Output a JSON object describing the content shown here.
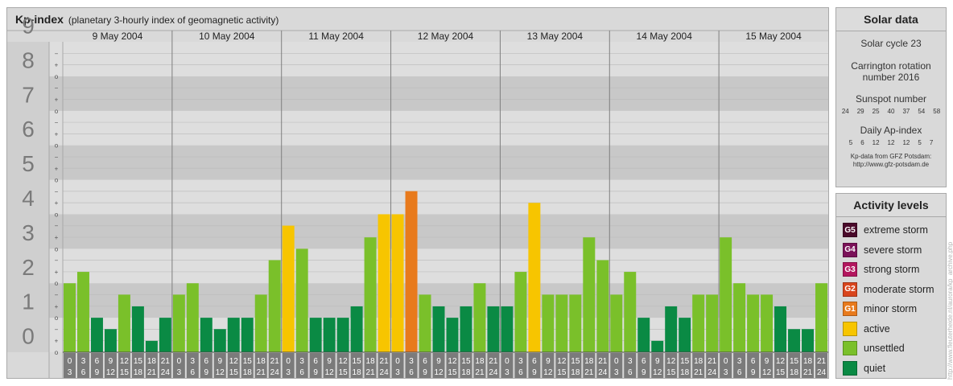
{
  "header": {
    "title": "Kp-index",
    "subtitle": "(planetary 3-hourly index of geomagnetic activity)"
  },
  "chart_data": {
    "type": "bar",
    "title": "Kp-index",
    "subtitle": "(planetary 3-hourly index of geomagnetic activity)",
    "days": [
      "9 May 2004",
      "10 May 2004",
      "11 May 2004",
      "12 May 2004",
      "13 May 2004",
      "14 May 2004",
      "15 May 2004"
    ],
    "intervals": [
      {
        "start": "0",
        "end": "3"
      },
      {
        "start": "3",
        "end": "6"
      },
      {
        "start": "6",
        "end": "9"
      },
      {
        "start": "9",
        "end": "12"
      },
      {
        "start": "12",
        "end": "15"
      },
      {
        "start": "15",
        "end": "18"
      },
      {
        "start": "18",
        "end": "21"
      },
      {
        "start": "21",
        "end": "24"
      }
    ],
    "values": [
      [
        2.0,
        2.33,
        1.0,
        0.67,
        1.67,
        1.33,
        0.33,
        1.0
      ],
      [
        1.67,
        2.0,
        1.0,
        0.67,
        1.0,
        1.0,
        1.67,
        2.67
      ],
      [
        3.67,
        3.0,
        1.0,
        1.0,
        1.0,
        1.33,
        3.33,
        4.0
      ],
      [
        4.0,
        4.67,
        1.67,
        1.33,
        1.0,
        1.33,
        2.0,
        1.33
      ],
      [
        1.33,
        2.33,
        4.33,
        1.67,
        1.67,
        1.67,
        3.33,
        2.67
      ],
      [
        1.67,
        2.33,
        1.0,
        0.33,
        1.33,
        1.0,
        1.67,
        1.67
      ],
      [
        3.33,
        2.0,
        1.67,
        1.67,
        1.33,
        0.67,
        0.67,
        2.0
      ]
    ],
    "ylim": [
      0,
      9
    ],
    "y_ticks": [
      "0",
      "1",
      "2",
      "3",
      "4",
      "5",
      "6",
      "7",
      "8",
      "9"
    ],
    "subdivision_marks": [
      "o",
      "+",
      "−"
    ],
    "colors": {
      "quiet": "#0a8a44",
      "unsettled": "#7ac02a",
      "active": "#f7c500",
      "G1": "#e87a1c",
      "G2": "#d9451c",
      "G3": "#b3165e",
      "G4": "#7a1158",
      "G5": "#4a0a2a"
    },
    "grid": true
  },
  "solar": {
    "heading": "Solar data",
    "cycle": "Solar cycle 23",
    "carrington_line1": "Carrington rotation",
    "carrington_line2": "number 2016",
    "sunspot_label": "Sunspot number",
    "sunspot_values": [
      "24",
      "29",
      "25",
      "40",
      "37",
      "54",
      "58"
    ],
    "ap_label": "Daily Ap-index",
    "ap_values": [
      "5",
      "6",
      "12",
      "12",
      "12",
      "5",
      "7"
    ],
    "credit_line1": "Kp-data from GFZ Potsdam:",
    "credit_line2": "http://www.gfz-potsdam.de"
  },
  "activity": {
    "heading": "Activity levels",
    "levels": [
      {
        "code": "G5",
        "label": "extreme storm",
        "color": "#4a0a2a"
      },
      {
        "code": "G4",
        "label": "severe storm",
        "color": "#7a1158"
      },
      {
        "code": "G3",
        "label": "strong storm",
        "color": "#b3165e"
      },
      {
        "code": "G2",
        "label": "moderate storm",
        "color": "#d9451c"
      },
      {
        "code": "G1",
        "label": "minor storm",
        "color": "#e87a1c"
      },
      {
        "code": "",
        "label": "active",
        "color": "#f7c500"
      },
      {
        "code": "",
        "label": "unsettled",
        "color": "#7ac02a"
      },
      {
        "code": "",
        "label": "quiet",
        "color": "#0a8a44"
      }
    ]
  },
  "watermark": "http://www.fleuterheide.nl/aurora/kp_archive.php"
}
